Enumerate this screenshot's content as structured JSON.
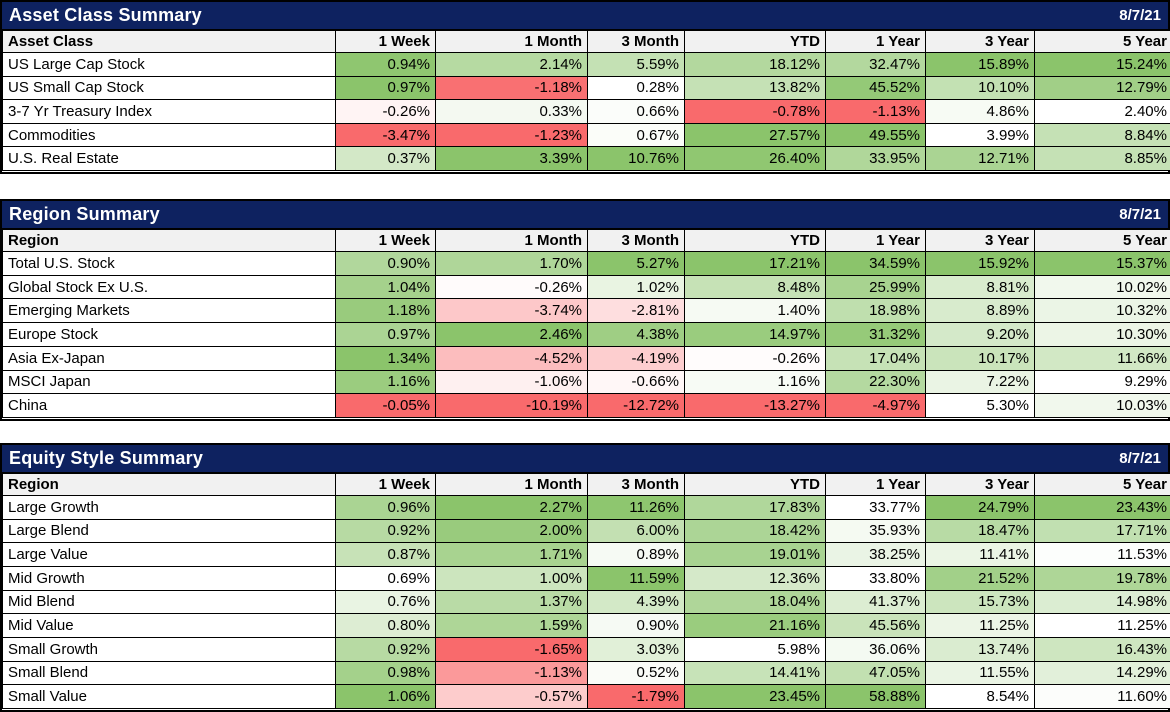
{
  "colors": {
    "title_bar_bg": "#0E2260",
    "title_text": "#FFFFFF",
    "header_row_bg": "#F1F1F1",
    "grid_line": "#000000",
    "positive_full": "#8BC46B",
    "negative_full": "#F96A6C",
    "neutral": "#FFFFFF"
  },
  "value_suffix": "%",
  "tables": [
    {
      "title": "Asset Class Summary",
      "date": "8/7/21",
      "row_header_label": "Asset Class",
      "period_headers": [
        "1 Week",
        "1 Month",
        "3 Month",
        "YTD",
        "1 Year",
        "3 Year",
        "5 Year"
      ],
      "rows": [
        {
          "name": "US Large Cap Stock",
          "values": [
            0.94,
            2.14,
            5.59,
            18.12,
            32.47,
            15.89,
            15.24
          ]
        },
        {
          "name": "US Small Cap Stock",
          "values": [
            0.97,
            -1.18,
            0.28,
            13.82,
            45.52,
            10.1,
            12.79
          ]
        },
        {
          "name": "3-7 Yr Treasury Index",
          "values": [
            -0.26,
            0.33,
            0.66,
            -0.78,
            -1.13,
            4.86,
            2.4
          ]
        },
        {
          "name": "Commodities",
          "values": [
            -3.47,
            -1.23,
            0.67,
            27.57,
            49.55,
            3.99,
            8.84
          ]
        },
        {
          "name": "U.S. Real Estate",
          "values": [
            0.37,
            3.39,
            10.76,
            26.4,
            33.95,
            12.71,
            8.85
          ]
        }
      ]
    },
    {
      "title": "Region Summary",
      "date": "8/7/21",
      "row_header_label": "Region",
      "period_headers": [
        "1 Week",
        "1 Month",
        "3 Month",
        "YTD",
        "1 Year",
        "3 Year",
        "5 Year"
      ],
      "rows": [
        {
          "name": "Total U.S. Stock",
          "values": [
            0.9,
            1.7,
            5.27,
            17.21,
            34.59,
            15.92,
            15.37
          ]
        },
        {
          "name": "Global Stock Ex U.S.",
          "values": [
            1.04,
            -0.26,
            1.02,
            8.48,
            25.99,
            8.81,
            10.02
          ]
        },
        {
          "name": "Emerging Markets",
          "values": [
            1.18,
            -3.74,
            -2.81,
            1.4,
            18.98,
            8.89,
            10.32
          ]
        },
        {
          "name": "Europe Stock",
          "values": [
            0.97,
            2.46,
            4.38,
            14.97,
            31.32,
            9.2,
            10.3
          ]
        },
        {
          "name": "Asia Ex-Japan",
          "values": [
            1.34,
            -4.52,
            -4.19,
            -0.26,
            17.04,
            10.17,
            11.66
          ]
        },
        {
          "name": "MSCI Japan",
          "values": [
            1.16,
            -1.06,
            -0.66,
            1.16,
            22.3,
            7.22,
            9.29
          ]
        },
        {
          "name": "China",
          "values": [
            -0.05,
            -10.19,
            -12.72,
            -13.27,
            -4.97,
            5.3,
            10.03
          ]
        }
      ]
    },
    {
      "title": "Equity Style Summary",
      "date": "8/7/21",
      "row_header_label": "Region",
      "period_headers": [
        "1 Week",
        "1 Month",
        "3 Month",
        "YTD",
        "1 Year",
        "3 Year",
        "5 Year"
      ],
      "rows": [
        {
          "name": "Large Growth",
          "values": [
            0.96,
            2.27,
            11.26,
            17.83,
            33.77,
            24.79,
            23.43
          ]
        },
        {
          "name": "Large Blend",
          "values": [
            0.92,
            2.0,
            6.0,
            18.42,
            35.93,
            18.47,
            17.71
          ]
        },
        {
          "name": "Large Value",
          "values": [
            0.87,
            1.71,
            0.89,
            19.01,
            38.25,
            11.41,
            11.53
          ]
        },
        {
          "name": "Mid Growth",
          "values": [
            0.69,
            1.0,
            11.59,
            12.36,
            33.8,
            21.52,
            19.78
          ]
        },
        {
          "name": "Mid Blend",
          "values": [
            0.76,
            1.37,
            4.39,
            18.04,
            41.37,
            15.73,
            14.98
          ]
        },
        {
          "name": "Mid Value",
          "values": [
            0.8,
            1.59,
            0.9,
            21.16,
            45.56,
            11.25,
            11.25
          ]
        },
        {
          "name": "Small Growth",
          "values": [
            0.92,
            -1.65,
            3.03,
            5.98,
            36.06,
            13.74,
            16.43
          ]
        },
        {
          "name": "Small Blend",
          "values": [
            0.98,
            -1.13,
            0.52,
            14.41,
            47.05,
            11.55,
            14.29
          ]
        },
        {
          "name": "Small Value",
          "values": [
            1.06,
            -0.57,
            -1.79,
            23.45,
            58.88,
            8.54,
            11.6
          ]
        }
      ]
    }
  ]
}
